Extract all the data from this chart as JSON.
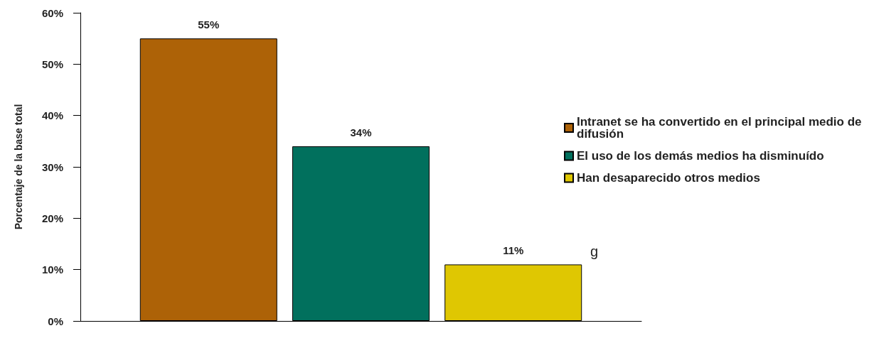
{
  "chart_data": {
    "type": "bar",
    "ylabel": "Porcentaje de la base total",
    "categories": [
      null
    ],
    "series": [
      {
        "name": "Intranet se ha convertido en el principal medio de difusión",
        "color": "#ad6207",
        "values": [
          55
        ],
        "value_labels": [
          "55%"
        ]
      },
      {
        "name": "El uso de los demás medios ha disminuído",
        "color": "#01705d",
        "values": [
          34
        ],
        "value_labels": [
          "34%"
        ]
      },
      {
        "name": "Han desaparecido otros medios",
        "color": "#dfc702",
        "values": [
          11
        ],
        "value_labels": [
          "11%"
        ]
      }
    ],
    "ylim": [
      0,
      60
    ],
    "yticks": [
      {
        "value": 0,
        "label": "0%"
      },
      {
        "value": 10,
        "label": "10%"
      },
      {
        "value": 20,
        "label": "20%"
      },
      {
        "value": 30,
        "label": "30%"
      },
      {
        "value": 40,
        "label": "40%"
      },
      {
        "value": 50,
        "label": "50%"
      },
      {
        "value": 60,
        "label": "60%"
      }
    ],
    "grid": false,
    "legend": "right",
    "annotations": [
      "g"
    ]
  }
}
